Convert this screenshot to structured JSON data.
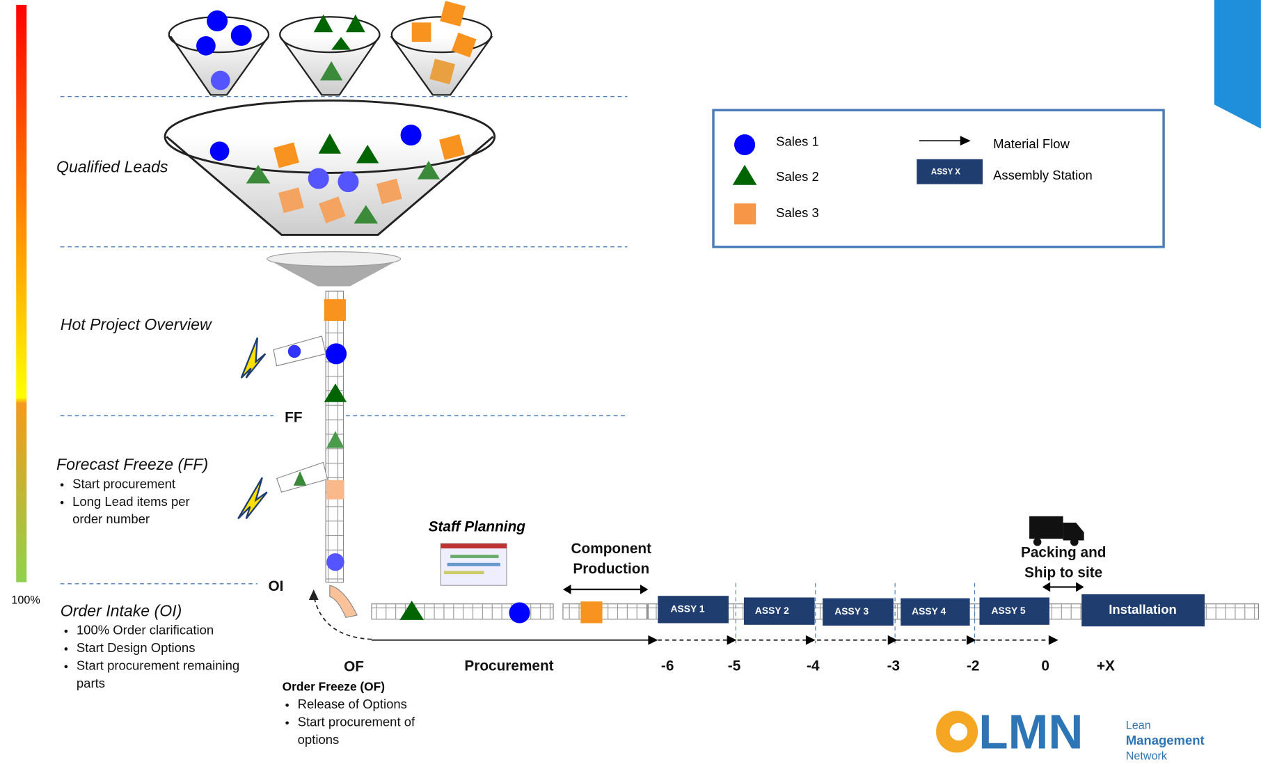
{
  "stages": [
    {
      "title": "Qualified Leads",
      "bullets": []
    },
    {
      "title": "Hot Project Overview",
      "bullets": []
    },
    {
      "title": "Forecast Freeze (FF)",
      "bullets": [
        "Start procurement",
        "Long Lead items per order number"
      ]
    },
    {
      "title": "Order Intake (OI)",
      "bullets": [
        "100% Order clarification",
        "Start Design Options",
        "Start procurement remaining parts"
      ]
    }
  ],
  "scale_label": "100%",
  "markers": {
    "ff": "FF",
    "oi": "OI",
    "of": "OF"
  },
  "order_freeze": {
    "title": "Order Freeze (OF)",
    "bullets": [
      "Release of Options",
      "Start procurement of options"
    ]
  },
  "labels": {
    "staff_planning": "Staff Planning",
    "component_production": "Component Production",
    "packing": "Packing and Ship to site"
  },
  "stations": [
    "ASSY 1",
    "ASSY 2",
    "ASSY 3",
    "ASSY 4",
    "ASSY 5",
    "Installation"
  ],
  "timeline": [
    "Procurement",
    "-6",
    "-5",
    "-4",
    "-3",
    "-2",
    "0",
    "+X"
  ],
  "legend": {
    "sales": [
      "Sales 1",
      "Sales 2",
      "Sales 3"
    ],
    "material_flow": "Material Flow",
    "station_sample": "ASSY X",
    "assembly_station": "Assembly Station"
  },
  "logo": {
    "mark": "LMN",
    "words": [
      "Lean",
      "Management",
      "Network"
    ]
  }
}
